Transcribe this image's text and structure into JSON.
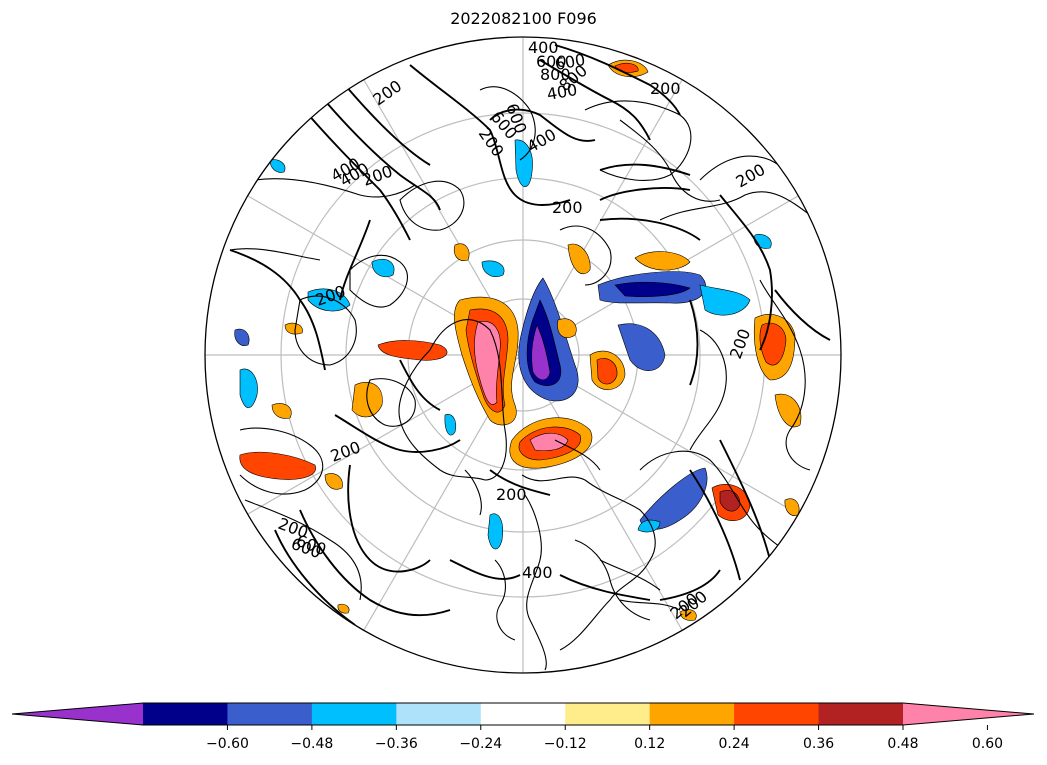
{
  "title": "2022082100 F096",
  "map": {
    "projection": "north-polar-stereographic",
    "contour_labels": [
      "400",
      "600",
      "800",
      "200",
      "400",
      "600",
      "800",
      "200",
      "200",
      "600",
      "200",
      "400",
      "200",
      "200",
      "200",
      "200",
      "200",
      "200",
      "200",
      "400",
      "200",
      "400",
      "600",
      "200",
      "400",
      "600",
      "600"
    ]
  },
  "colorbar": {
    "orientation": "horizontal",
    "extend": "both",
    "colors": [
      "#9932cc",
      "#00008b",
      "#3a5fcd",
      "#00bfff",
      "#aee2fb",
      "#ffffff",
      "#ffec8b",
      "#ffa500",
      "#ff4500",
      "#b22222",
      "#ff82ab"
    ],
    "tick_labels": [
      "−0.60",
      "−0.48",
      "−0.36",
      "−0.24",
      "−0.12",
      "0.12",
      "0.24",
      "0.36",
      "0.48",
      "0.60"
    ]
  }
}
